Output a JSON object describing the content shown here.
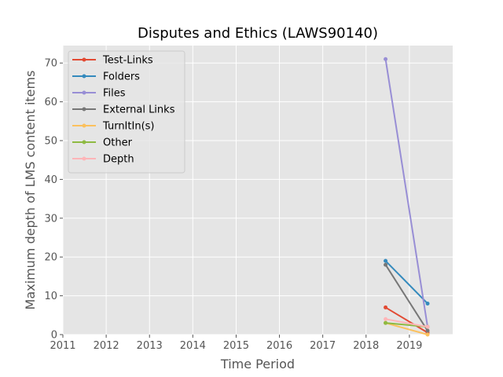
{
  "chart_data": {
    "type": "line",
    "title": "Disputes and Ethics (LAWS90140)",
    "xlabel": "Time Period",
    "ylabel": "Maximum depth of LMS content items",
    "xlim": [
      2011,
      2020
    ],
    "ylim": [
      0,
      74.5
    ],
    "xticks": [
      2011,
      2012,
      2013,
      2014,
      2015,
      2016,
      2017,
      2018,
      2019
    ],
    "xtick_labels": [
      "2011",
      "2012",
      "2013",
      "2014",
      "2015",
      "2016",
      "2017",
      "2018",
      "2019"
    ],
    "yticks": [
      0,
      10,
      20,
      30,
      40,
      50,
      60,
      70
    ],
    "ytick_labels": [
      "0",
      "10",
      "20",
      "30",
      "40",
      "50",
      "60",
      "70"
    ],
    "grid": true,
    "legend_position": "upper-left",
    "series": [
      {
        "name": "Test-Links",
        "color": "#E24A33",
        "x": [
          2018.45,
          2019.42
        ],
        "y": [
          7,
          0.5
        ]
      },
      {
        "name": "Folders",
        "color": "#348ABD",
        "x": [
          2018.45,
          2019.42
        ],
        "y": [
          19,
          8
        ]
      },
      {
        "name": "Files",
        "color": "#988ED5",
        "x": [
          2018.45,
          2019.42
        ],
        "y": [
          71,
          2
        ]
      },
      {
        "name": "External Links",
        "color": "#777777",
        "x": [
          2018.45,
          2019.42
        ],
        "y": [
          18,
          1
        ]
      },
      {
        "name": "TurnItIn(s)",
        "color": "#FBC15E",
        "x": [
          2018.45,
          2019.42
        ],
        "y": [
          3,
          0
        ]
      },
      {
        "name": "Other",
        "color": "#8EBA42",
        "x": [
          2018.45,
          2019.42
        ],
        "y": [
          3,
          2
        ]
      },
      {
        "name": "Depth",
        "color": "#FFB5B8",
        "x": [
          2018.45,
          2019.42
        ],
        "y": [
          4,
          2
        ]
      }
    ]
  }
}
